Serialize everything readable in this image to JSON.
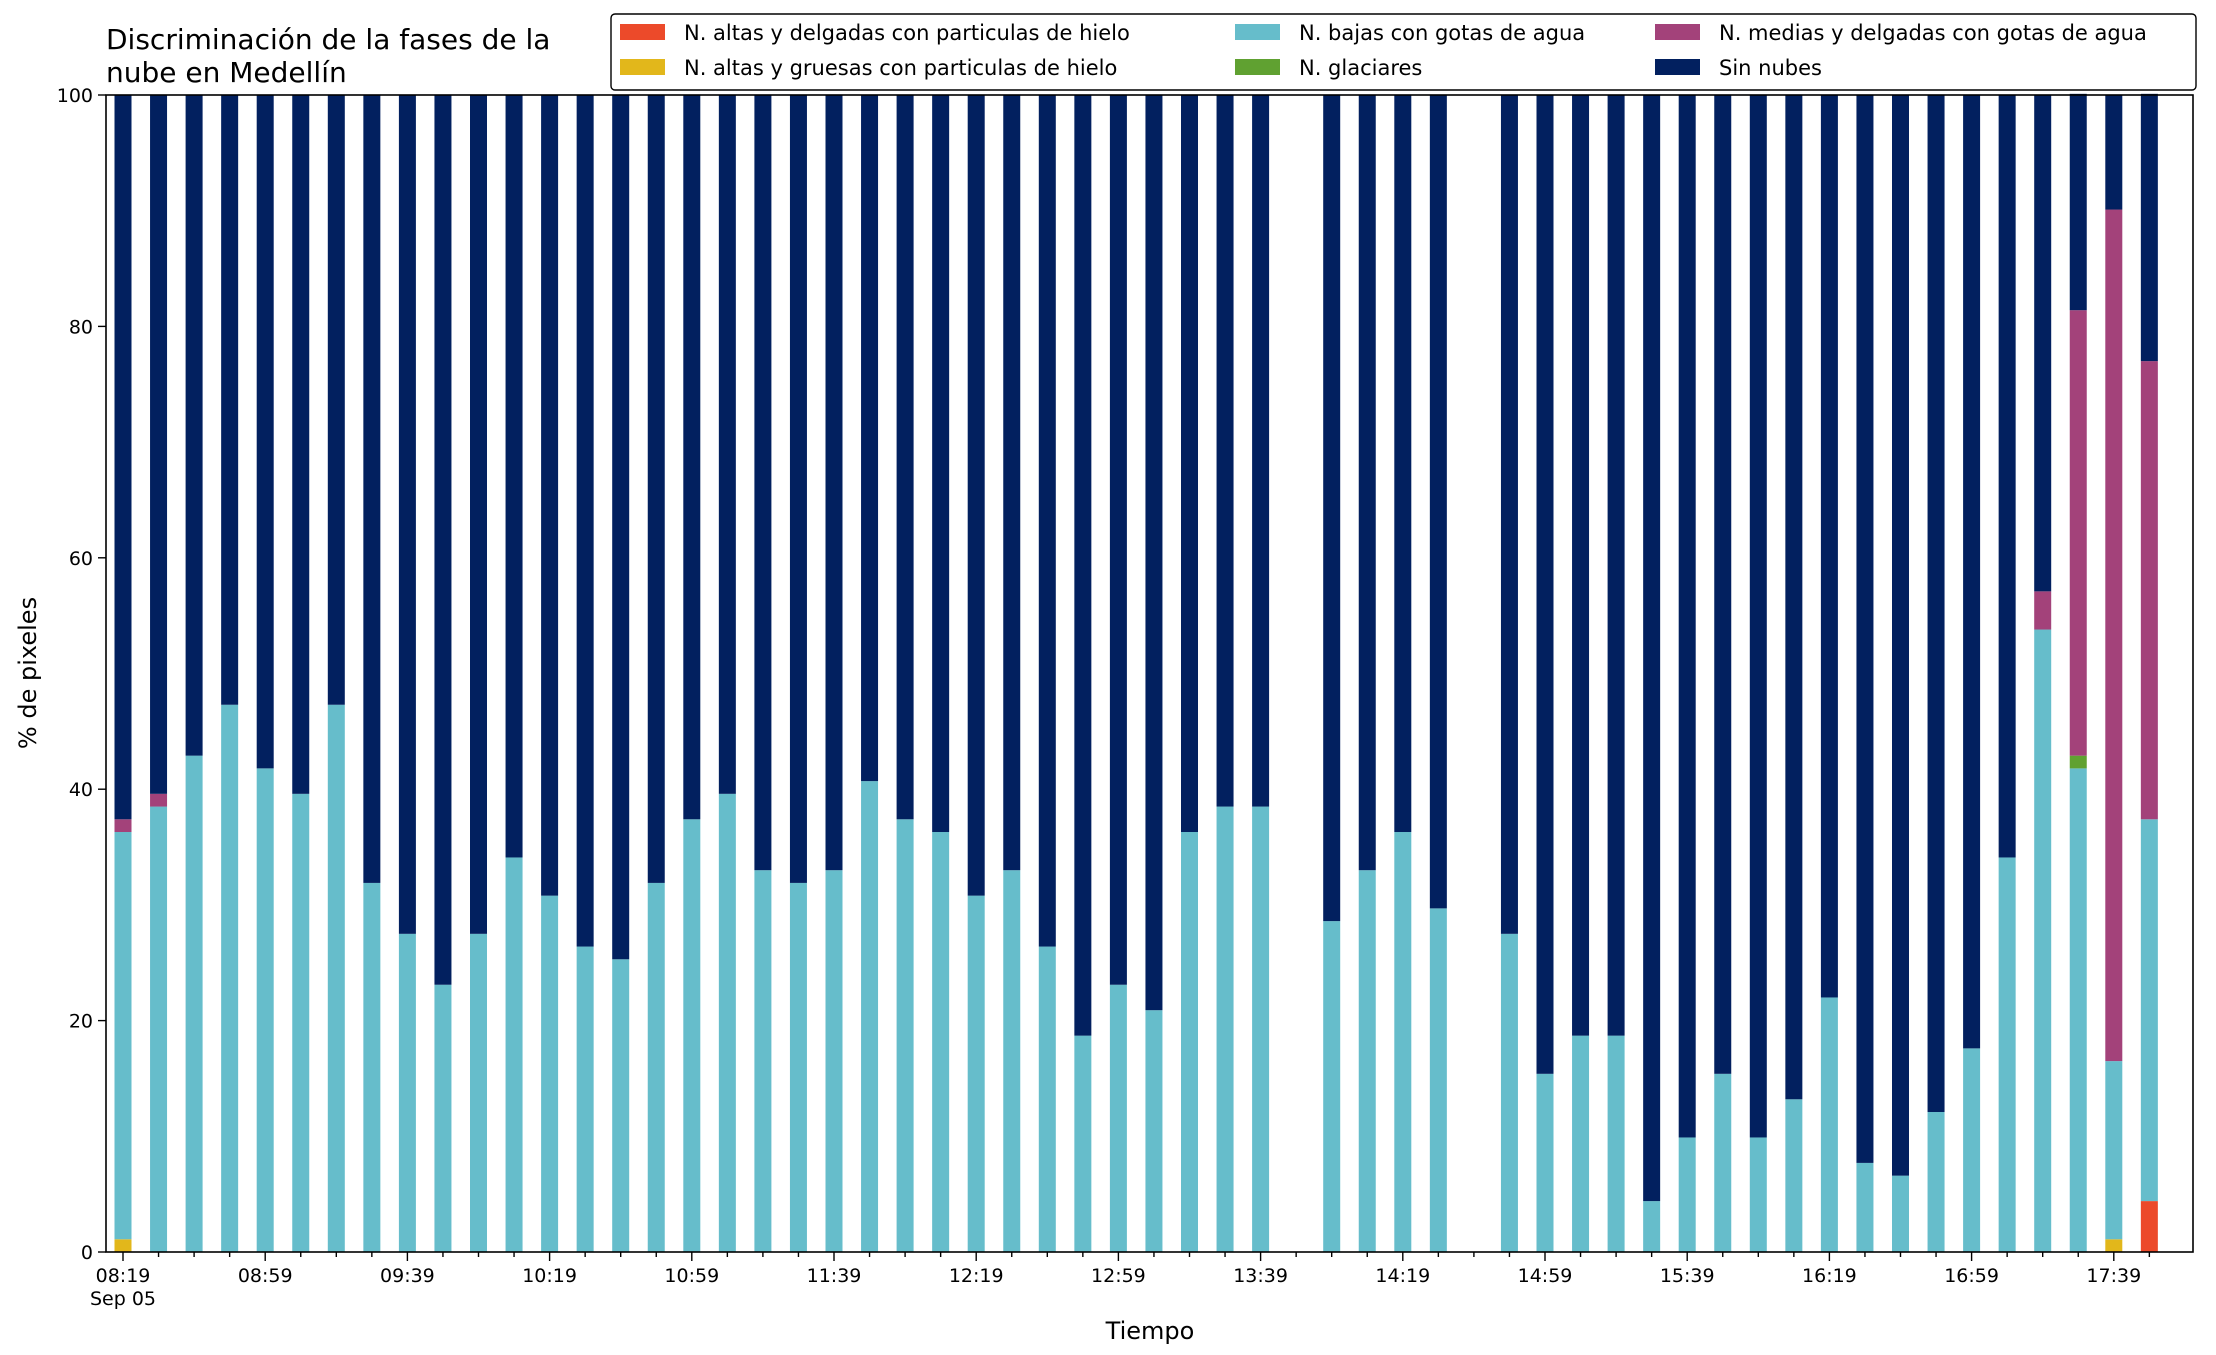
{
  "chart_data": {
    "type": "bar",
    "stacked": true,
    "title_lines": [
      "Discriminación de la fases de la",
      "nube en Medellín"
    ],
    "xlabel": "Tiempo",
    "ylabel": "% de pixeles",
    "ylim": [
      0,
      100
    ],
    "yticks": [
      "0",
      "20",
      "40",
      "60",
      "80",
      "100"
    ],
    "x_first_label_line2": "Sep 05",
    "grid": false,
    "legend_placement": "top-right",
    "xticks": [
      {
        "slot": 0,
        "label": "08:19"
      },
      {
        "slot": 4,
        "label": "08:59"
      },
      {
        "slot": 8,
        "label": "09:39"
      },
      {
        "slot": 12,
        "label": "10:19"
      },
      {
        "slot": 16,
        "label": "10:59"
      },
      {
        "slot": 20,
        "label": "11:39"
      },
      {
        "slot": 24,
        "label": "12:19"
      },
      {
        "slot": 28,
        "label": "12:59"
      },
      {
        "slot": 32,
        "label": "13:39"
      },
      {
        "slot": 36,
        "label": "14:19"
      },
      {
        "slot": 40,
        "label": "14:59"
      },
      {
        "slot": 44,
        "label": "15:39"
      },
      {
        "slot": 48,
        "label": "16:19"
      },
      {
        "slot": 52,
        "label": "16:59"
      },
      {
        "slot": 56,
        "label": "17:39"
      }
    ],
    "x_times": [
      "08:19",
      "08:29",
      "08:39",
      "08:49",
      "08:59",
      "09:09",
      "09:19",
      "09:29",
      "09:39",
      "09:49",
      "09:59",
      "10:09",
      "10:19",
      "10:29",
      "10:39",
      "10:49",
      "10:59",
      "11:09",
      "11:19",
      "11:29",
      "11:39",
      "11:49",
      "11:59",
      "12:09",
      "12:19",
      "12:29",
      "12:39",
      "12:49",
      "12:59",
      "13:09",
      "13:19",
      "13:29",
      "13:39",
      "13:49",
      "13:59",
      "14:09",
      "14:19",
      "14:29",
      "14:39",
      "14:49",
      "14:59",
      "15:09",
      "15:19",
      "15:29",
      "15:39",
      "15:49",
      "15:59",
      "16:09",
      "16:19",
      "16:29",
      "16:39",
      "16:49",
      "16:59",
      "17:09",
      "17:19",
      "17:29",
      "17:39",
      "17:49"
    ],
    "series": [
      {
        "name": "N. altas y delgadas con particulas de hielo",
        "color": "#ec4a2a",
        "values": [
          0,
          0,
          0,
          0,
          0,
          0,
          0,
          0,
          0,
          0,
          0,
          0,
          0,
          0,
          0,
          0,
          0,
          0,
          0,
          0,
          0,
          0,
          0,
          0,
          0,
          0,
          0,
          0,
          0,
          0,
          0,
          0,
          0,
          0,
          0,
          0,
          0,
          0,
          0,
          0,
          0,
          0,
          0,
          0,
          0,
          0,
          0,
          0,
          0,
          0,
          0,
          0,
          0,
          0,
          0,
          0,
          0,
          4.4
        ]
      },
      {
        "name": "N. altas y gruesas con particulas de hielo",
        "color": "#e2b71b",
        "values": [
          1.1,
          0,
          0,
          0,
          0,
          0,
          0,
          0,
          0,
          0,
          0,
          0,
          0,
          0,
          0,
          0,
          0,
          0,
          0,
          0,
          0,
          0,
          0,
          0,
          0,
          0,
          0,
          0,
          0,
          0,
          0,
          0,
          0,
          0,
          0,
          0,
          0,
          0,
          0,
          0,
          0,
          0,
          0,
          0,
          0,
          0,
          0,
          0,
          0,
          0,
          0,
          0,
          0,
          0,
          0,
          0,
          1.1,
          0
        ]
      },
      {
        "name": "N. bajas con gotas de agua",
        "color": "#66bdcb",
        "values": [
          35.2,
          38.5,
          42.9,
          47.3,
          41.8,
          39.6,
          47.3,
          31.9,
          27.5,
          23.1,
          27.5,
          34.1,
          30.8,
          26.4,
          25.3,
          31.9,
          37.4,
          39.6,
          33.0,
          31.9,
          33.0,
          40.7,
          37.4,
          36.3,
          30.8,
          33.0,
          26.4,
          18.7,
          23.1,
          20.9,
          36.3,
          38.5,
          38.5,
          null,
          28.6,
          33.0,
          36.3,
          29.7,
          null,
          27.5,
          15.4,
          18.7,
          18.7,
          4.4,
          9.9,
          15.4,
          9.9,
          13.2,
          22.0,
          7.7,
          6.6,
          12.1,
          17.6,
          34.1,
          53.8,
          41.8,
          15.4,
          33.0
        ]
      },
      {
        "name": "N. glaciares",
        "color": "#60a131",
        "values": [
          0,
          0,
          0,
          0,
          0,
          0,
          0,
          0,
          0,
          0,
          0,
          0,
          0,
          0,
          0,
          0,
          0,
          0,
          0,
          0,
          0,
          0,
          0,
          0,
          0,
          0,
          0,
          0,
          0,
          0,
          0,
          0,
          0,
          0,
          0,
          0,
          0,
          0,
          0,
          0,
          0,
          0,
          0,
          0,
          0,
          0,
          0,
          0,
          0,
          0,
          0,
          0,
          0,
          0,
          0,
          1.1,
          0,
          0
        ]
      },
      {
        "name": "N. medias y delgadas con gotas de agua",
        "color": "#a3427a",
        "values": [
          1.1,
          1.1,
          0,
          0,
          0,
          0,
          0,
          0,
          0,
          0,
          0,
          0,
          0,
          0,
          0,
          0,
          0,
          0,
          0,
          0,
          0,
          0,
          0,
          0,
          0,
          0,
          0,
          0,
          0,
          0,
          0,
          0,
          0,
          0,
          0,
          0,
          0,
          0,
          0,
          0,
          0,
          0,
          0,
          0,
          0,
          0,
          0,
          0,
          0,
          0,
          0,
          0,
          0,
          0,
          3.3,
          38.5,
          73.6,
          39.6
        ]
      },
      {
        "name": "Sin nubes",
        "color": "#02205f",
        "values": [
          62.6,
          60.4,
          57.1,
          52.7,
          58.2,
          60.4,
          52.7,
          68.1,
          72.5,
          76.9,
          72.5,
          65.9,
          69.2,
          73.6,
          74.7,
          68.1,
          62.6,
          60.4,
          67.0,
          68.1,
          67.0,
          59.3,
          62.6,
          63.7,
          69.2,
          67.0,
          73.6,
          81.3,
          76.9,
          79.1,
          63.7,
          61.5,
          61.5,
          null,
          71.4,
          67.0,
          63.7,
          70.3,
          null,
          72.5,
          84.6,
          81.3,
          81.3,
          95.6,
          90.1,
          84.6,
          90.1,
          86.8,
          78.0,
          92.3,
          93.4,
          87.9,
          82.4,
          65.9,
          42.9,
          18.7,
          9.9,
          23.1
        ]
      }
    ]
  }
}
